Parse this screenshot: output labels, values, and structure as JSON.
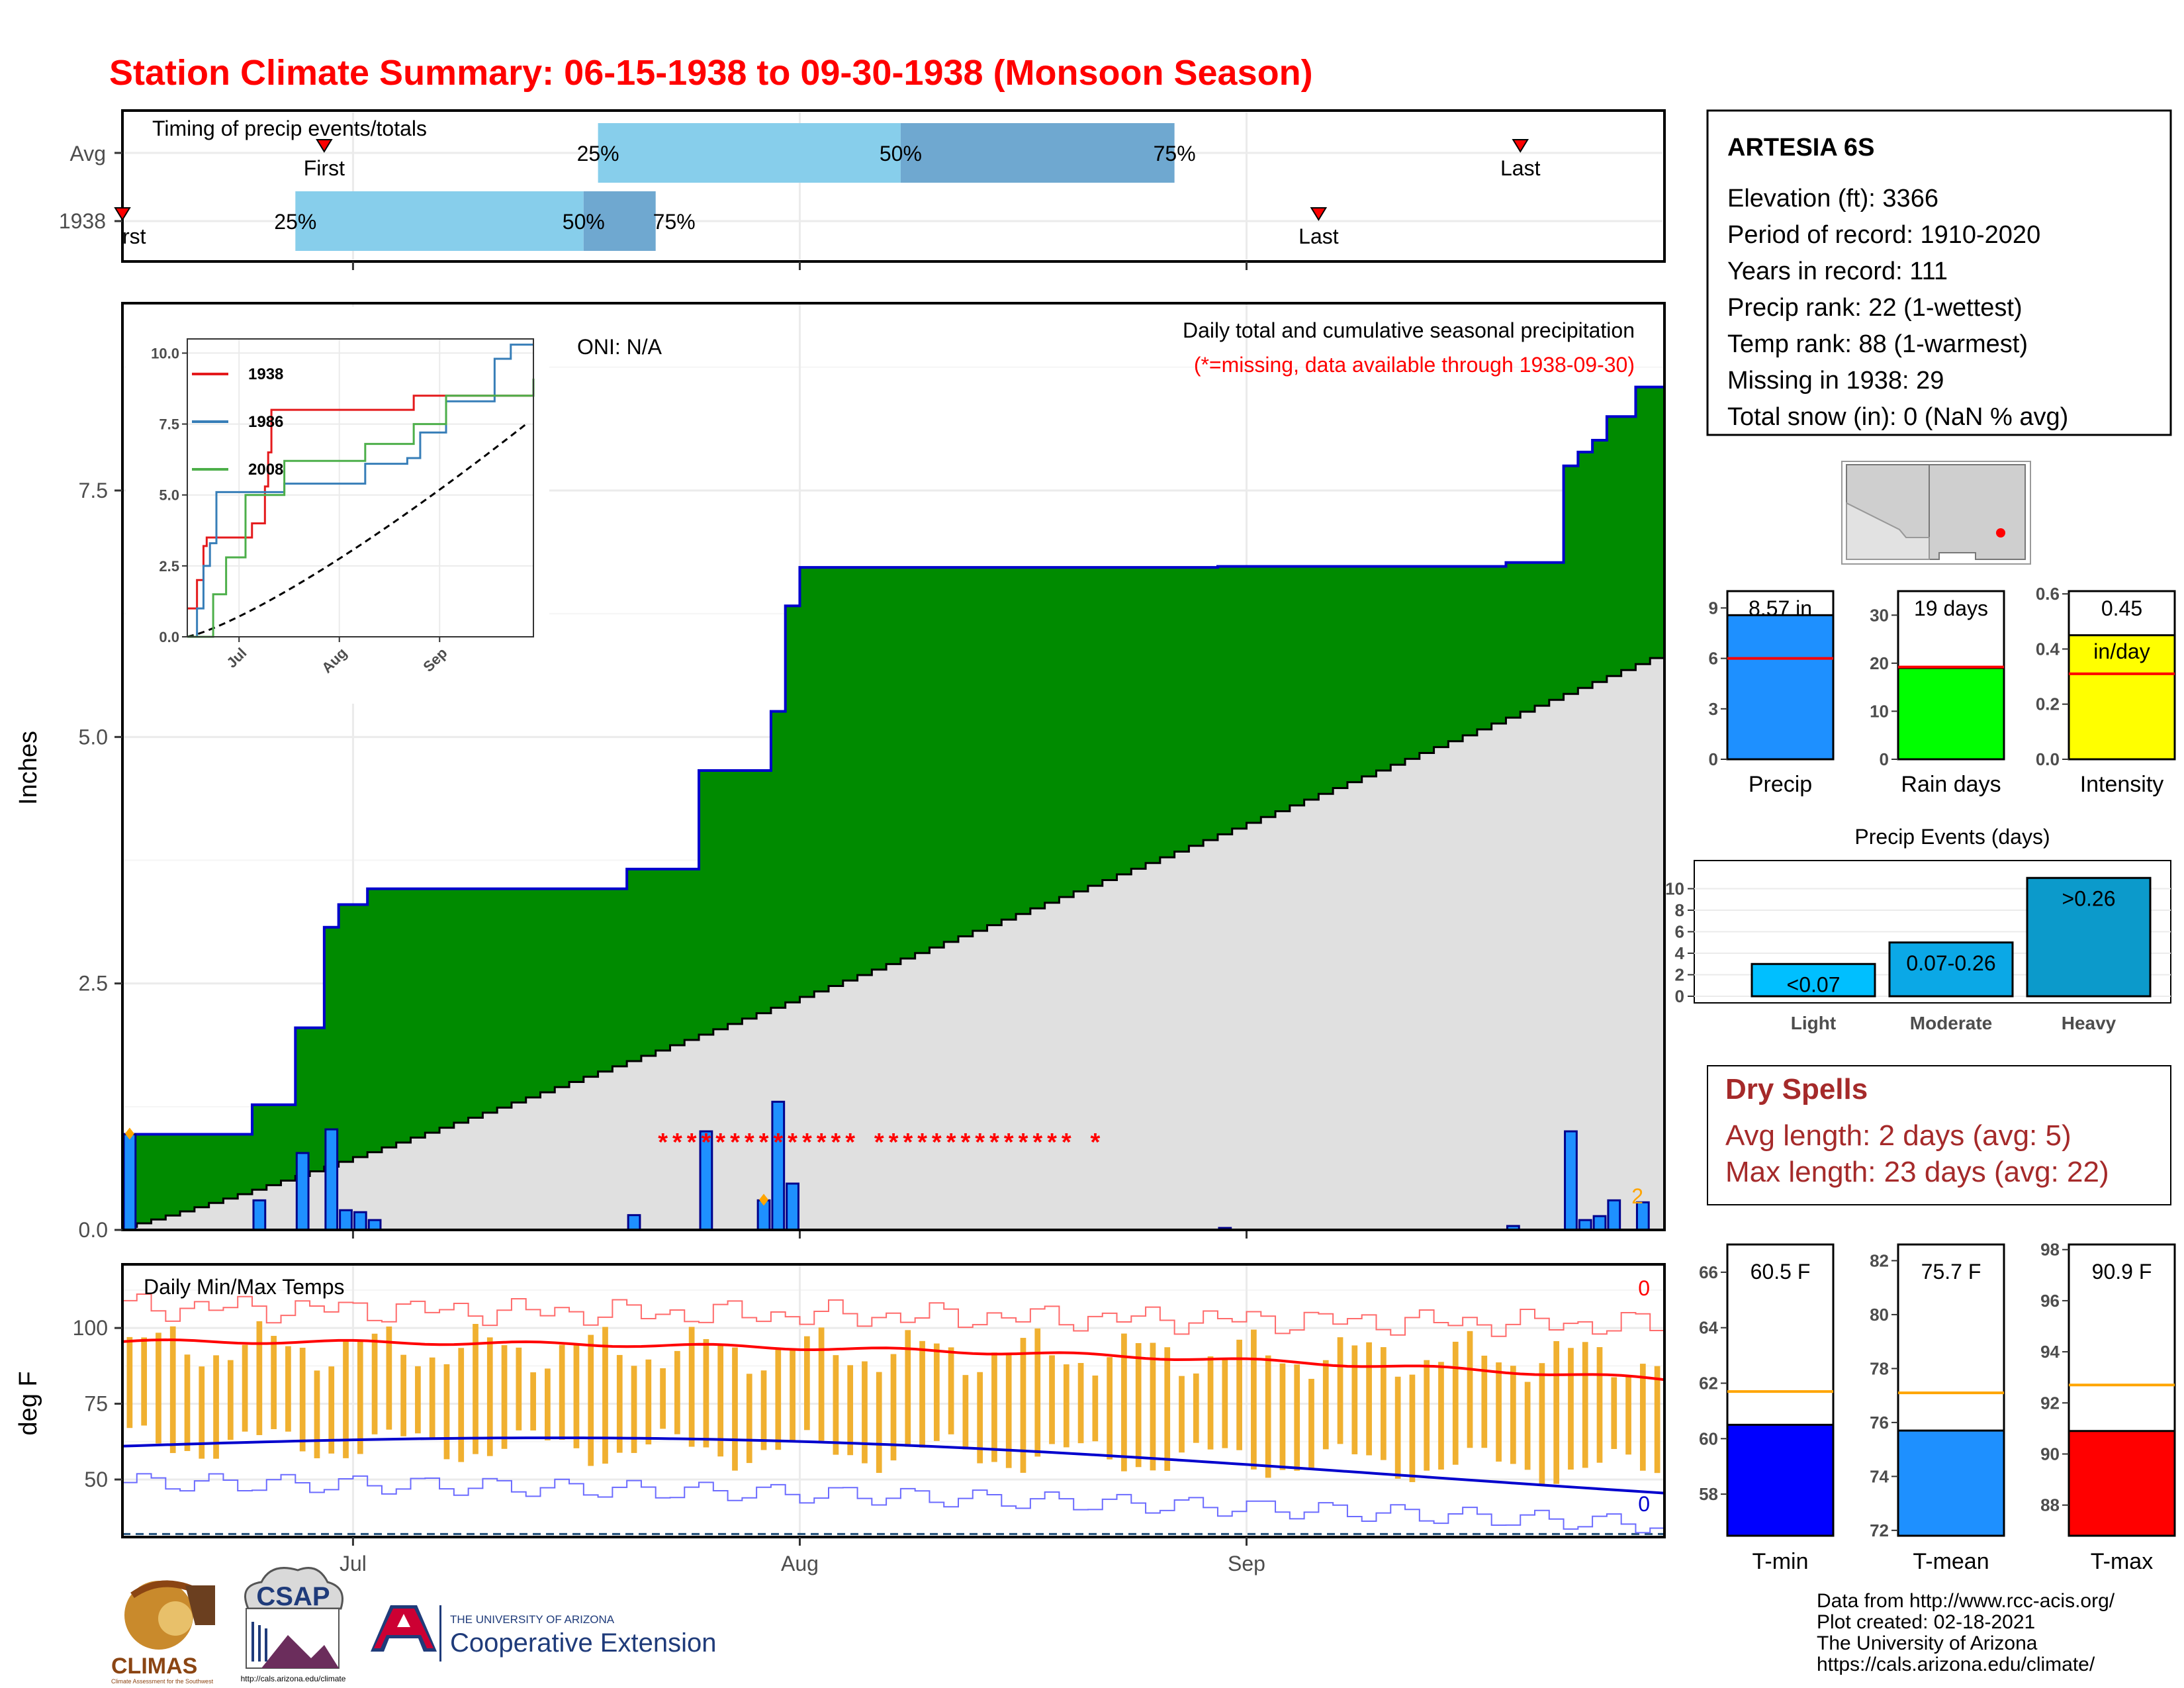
{
  "title": "Station Climate Summary: 06-15-1938 to 09-30-1938 (Monsoon Season)",
  "colors": {
    "title": "#ff0000",
    "green_cumulative": "#008b00",
    "avg_cumulative": "#e0e0e0",
    "daily_bar": "#1e90ff",
    "quartile_light": "#87ceeb",
    "quartile_dark": "#6fa8d0",
    "temp_range": "#f0b030",
    "tmax": "#ff0000",
    "tmin": "#0000cd",
    "dry_spells": "#a52a2a"
  },
  "timing": {
    "title": "Timing of precip events/totals",
    "rows": [
      "Avg",
      "1938"
    ],
    "avg": {
      "first": "2022-06-29",
      "q25": "2022-07-18",
      "q50": "2022-08-08",
      "q75": "2022-08-27",
      "last": "2022-09-20"
    },
    "y1938": {
      "first": "2022-06-15",
      "q25": "2022-06-27",
      "q50": "2022-07-17",
      "q75": "2022-07-22",
      "last": "2022-09-06"
    },
    "first_label": "First",
    "first_label_cut": "rst",
    "last_label": "Last",
    "q25_label": "25%",
    "q50_label": "50%",
    "q75_label": "75%"
  },
  "precip_panel": {
    "title": "Daily total and cumulative seasonal precipitation",
    "note": "(*=missing, data available through 1938-09-30)",
    "oni": "ONI: N/A",
    "ylabel": "Inches",
    "yticks": [
      "0.0",
      "2.5",
      "5.0",
      "7.5"
    ],
    "ylim": [
      0,
      9.4
    ],
    "missing_marker": "*",
    "count_note": "2"
  },
  "inset": {
    "yticks": [
      "0.0",
      "2.5",
      "5.0",
      "7.5",
      "10.0"
    ],
    "xticks": [
      "Jul",
      "Aug",
      "Sep"
    ],
    "legend": [
      "1938",
      "1986",
      "2008"
    ]
  },
  "temp_panel": {
    "title": "Daily Min/Max Temps",
    "ylabel": "deg F",
    "yticks": [
      "50",
      "75",
      "100"
    ],
    "ylim": [
      31,
      121
    ],
    "max_count": "0",
    "min_count": "0"
  },
  "xaxis": {
    "ticks": [
      "Jul",
      "Aug",
      "Sep"
    ],
    "start": "1938-06-15",
    "end": "1938-09-30"
  },
  "chart_data": [
    {
      "type": "area",
      "name": "cumulative precipitation 1938 vs average",
      "x_start": "1938-06-15",
      "cumulative_1938_steps": [
        [
          0,
          0.97
        ],
        [
          9,
          1.27
        ],
        [
          12,
          2.05
        ],
        [
          14,
          3.07
        ],
        [
          15,
          3.3
        ],
        [
          17,
          3.46
        ],
        [
          35,
          3.66
        ],
        [
          40,
          4.66
        ],
        [
          45,
          5.26
        ],
        [
          46,
          6.33
        ],
        [
          47,
          6.72
        ],
        [
          76,
          6.73
        ],
        [
          96,
          6.77
        ],
        [
          100,
          7.75
        ],
        [
          101,
          7.89
        ],
        [
          102,
          8.01
        ],
        [
          103,
          8.25
        ],
        [
          105,
          8.55
        ],
        [
          107,
          8.55
        ]
      ],
      "avg_cumulative_end": 5.8,
      "daily_bars": [
        [
          0,
          0.97
        ],
        [
          9,
          0.3
        ],
        [
          12,
          0.78
        ],
        [
          14,
          1.02
        ],
        [
          15,
          0.2
        ],
        [
          16,
          0.18
        ],
        [
          17,
          0.1
        ],
        [
          35,
          0.15
        ],
        [
          40,
          1.0
        ],
        [
          44,
          0.3
        ],
        [
          45,
          1.3
        ],
        [
          46,
          0.47
        ],
        [
          76,
          0.02
        ],
        [
          96,
          0.04
        ],
        [
          100,
          1.0
        ],
        [
          101,
          0.1
        ],
        [
          102,
          0.14
        ],
        [
          103,
          0.3
        ],
        [
          105,
          0.28
        ]
      ],
      "missing_days": [
        37,
        38,
        39,
        40,
        41,
        42,
        43,
        44,
        45,
        46,
        47,
        48,
        49,
        50,
        52,
        53,
        54,
        55,
        56,
        57,
        58,
        59,
        60,
        61,
        62,
        63,
        64,
        65,
        67
      ]
    },
    {
      "type": "line",
      "name": "inset cumulative comparison",
      "ylim": [
        0,
        10.5
      ],
      "series": [
        {
          "name": "1938",
          "steps": [
            [
              0,
              1
            ],
            [
              3,
              2
            ],
            [
              5,
              3.2
            ],
            [
              6,
              3.5
            ],
            [
              20,
              4
            ],
            [
              24,
              5.3
            ],
            [
              25,
              6.5
            ],
            [
              26,
              8
            ],
            [
              70,
              8.5
            ],
            [
              107,
              8.5
            ]
          ]
        },
        {
          "name": "1986",
          "steps": [
            [
              0,
              0
            ],
            [
              3,
              1
            ],
            [
              5,
              2.5
            ],
            [
              7,
              3.3
            ],
            [
              9,
              5.1
            ],
            [
              30,
              5.4
            ],
            [
              55,
              6.1
            ],
            [
              68,
              6.3
            ],
            [
              72,
              7.2
            ],
            [
              80,
              8.3
            ],
            [
              95,
              9.8
            ],
            [
              100,
              10.3
            ]
          ]
        },
        {
          "name": "2008",
          "steps": [
            [
              0,
              0
            ],
            [
              8,
              1.5
            ],
            [
              12,
              2.8
            ],
            [
              18,
              5
            ],
            [
              30,
              6.2
            ],
            [
              55,
              6.8
            ],
            [
              70,
              7.5
            ],
            [
              80,
              8.5
            ],
            [
              107,
              9.1
            ]
          ]
        }
      ]
    },
    {
      "type": "bar",
      "name": "summary bars",
      "panels": [
        {
          "category": "Precip",
          "value": 8.57,
          "value_label": "8.57 in",
          "avg": 6.0,
          "ylim": [
            0,
            10
          ],
          "yticks": [
            "0",
            "3",
            "6",
            "9"
          ],
          "color": "#1e90ff"
        },
        {
          "category": "Rain days",
          "value": 19,
          "value_label": "19 days",
          "avg": 19.2,
          "ylim": [
            0,
            35
          ],
          "yticks": [
            "0",
            "10",
            "20",
            "30"
          ],
          "color": "#00ff00"
        },
        {
          "category": "Intensity",
          "value": 0.45,
          "value_label": "0.45",
          "value_label_2": "in/day",
          "avg": 0.31,
          "ylim": [
            0,
            0.61
          ],
          "yticks": [
            "0.0",
            "0.2",
            "0.4",
            "0.6"
          ],
          "color": "#ffff00"
        }
      ]
    },
    {
      "type": "bar",
      "name": "Precip Events (days)",
      "title": "Precip Events (days)",
      "categories": [
        "Light",
        "Moderate",
        "Heavy"
      ],
      "bar_labels": [
        "<0.07",
        "0.07-0.26",
        ">0.26"
      ],
      "values": [
        3,
        5,
        11
      ],
      "ylim": [
        0,
        12
      ],
      "yticks": [
        "0",
        "2",
        "4",
        "6",
        "8",
        "10"
      ]
    },
    {
      "type": "bar",
      "name": "temperature summary",
      "panels": [
        {
          "category": "T-min",
          "value": 60.5,
          "value_label": "60.5 F",
          "avg": 61.7,
          "ylim": [
            56.5,
            67
          ],
          "yticks": [
            "58",
            "60",
            "62",
            "64",
            "66"
          ],
          "color": "#0000ff"
        },
        {
          "category": "T-mean",
          "value": 75.7,
          "value_label": "75.7 F",
          "avg": 77.1,
          "ylim": [
            71.8,
            82.6
          ],
          "yticks": [
            "72",
            "74",
            "76",
            "78",
            "80",
            "82"
          ],
          "color": "#1e90ff"
        },
        {
          "category": "T-max",
          "value": 90.9,
          "value_label": "90.9 F",
          "avg": 92.7,
          "ylim": [
            86.8,
            98.2
          ],
          "yticks": [
            "88",
            "90",
            "92",
            "94",
            "96",
            "98"
          ],
          "color": "#ff0000"
        }
      ]
    }
  ],
  "station": {
    "name": "ARTESIA 6S",
    "lines": [
      "Elevation (ft): 3366",
      "Period of record: 1910-2020",
      "Years in record: 111",
      "Precip rank: 22 (1-wettest)",
      "Temp rank: 88 (1-warmest)",
      "Missing in 1938: 29",
      "Total snow (in): 0 (NaN % avg)"
    ]
  },
  "dry_spells": {
    "title": "Dry Spells",
    "avg": "Avg length: 2 days (avg: 5)",
    "max": "Max length: 23 days (avg: 22)"
  },
  "footer": {
    "lines": [
      "Data from http://www.rcc-acis.org/",
      "Plot created: 02-18-2021",
      "The University of Arizona",
      "https://cals.arizona.edu/climate/"
    ],
    "climas": "CLIMAS",
    "climas_sub": "Climate Assessment for the Southwest",
    "csap": "CSAP",
    "csap_url": "http://cals.arizona.edu/climate",
    "ua_top": "THE UNIVERSITY OF ARIZONA",
    "ua_bottom": "Cooperative Extension"
  }
}
